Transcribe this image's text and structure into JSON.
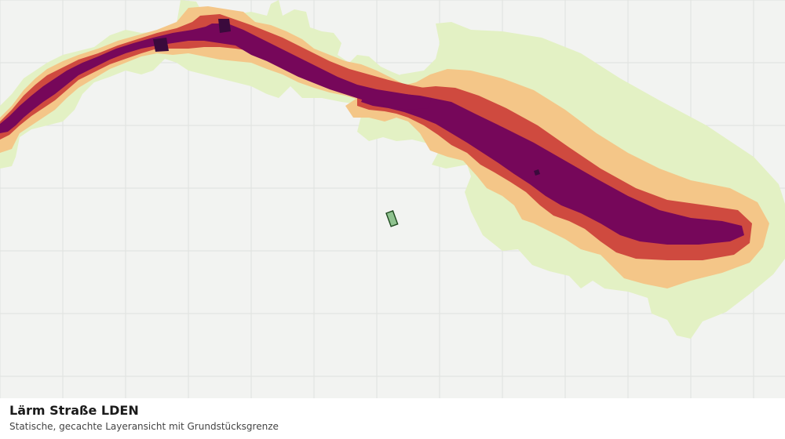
{
  "map": {
    "title": "Lärm Straße LDEN",
    "subtitle": "Statische, gecachte Layeransicht mit Grundstücksgrenze",
    "layers": [
      {
        "name": "noise-band-lowest",
        "color": "#e3f1c4"
      },
      {
        "name": "noise-band-low",
        "color": "#f4c688"
      },
      {
        "name": "noise-band-mid",
        "color": "#cf4a3f"
      },
      {
        "name": "noise-band-high",
        "color": "#76075a"
      },
      {
        "name": "noise-band-highest",
        "color": "#3a0a3c"
      }
    ],
    "parcel": {
      "fill": "#8fc28f",
      "stroke": "#1f4a1f"
    },
    "grid_color": "#dfe1de"
  }
}
